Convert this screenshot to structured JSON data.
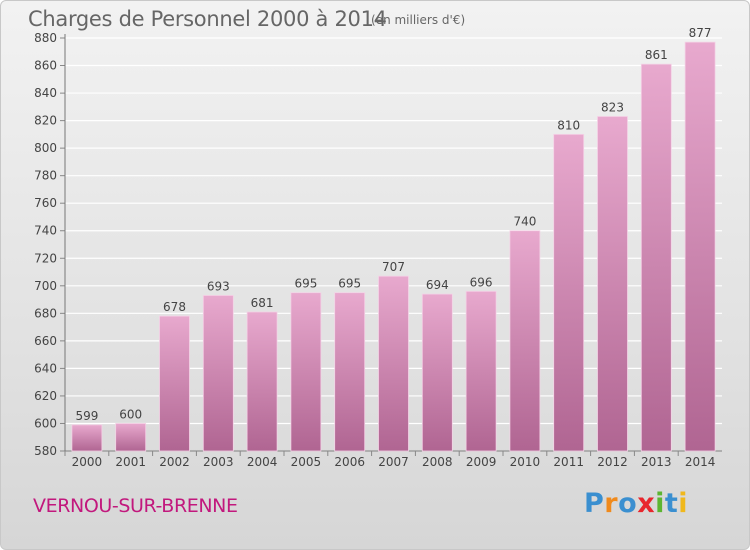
{
  "header": {
    "title": "Charges de Personnel 2000 à 2014",
    "unit_note": "(en milliers d'€)"
  },
  "footer": {
    "place_name": "VERNOU-SUR-BRENNE",
    "brand_logo": "Proxiti",
    "brand_letters": [
      {
        "ch": "P",
        "color": "#3a8fd0"
      },
      {
        "ch": "r",
        "color": "#f08a1c"
      },
      {
        "ch": "o",
        "color": "#3a8fd0"
      },
      {
        "ch": "x",
        "color": "#e8262d"
      },
      {
        "ch": "i",
        "color": "#5cb531"
      },
      {
        "ch": "t",
        "color": "#3a8fd0"
      },
      {
        "ch": "i",
        "color": "#f0b81c"
      }
    ]
  },
  "colors": {
    "bar_top": "#e8a9ce",
    "bar_bottom": "#b06592",
    "text": "#444444",
    "grid": "#ffffff",
    "place_name": "#c2187d"
  },
  "chart_data": {
    "type": "bar",
    "categories": [
      "2000",
      "2001",
      "2002",
      "2003",
      "2004",
      "2005",
      "2006",
      "2007",
      "2008",
      "2009",
      "2010",
      "2011",
      "2012",
      "2013",
      "2014"
    ],
    "values": [
      599,
      600,
      678,
      693,
      681,
      695,
      695,
      707,
      694,
      696,
      740,
      810,
      823,
      861,
      877
    ],
    "title": "Charges de Personnel 2000 à 2014",
    "subtitle": "(en milliers d'€)",
    "xlabel": "",
    "ylabel": "",
    "ylim": [
      580,
      880
    ],
    "yticks": [
      580,
      600,
      620,
      640,
      660,
      680,
      700,
      720,
      740,
      760,
      780,
      800,
      820,
      840,
      860,
      880
    ],
    "grid": true,
    "data_labels": true
  }
}
